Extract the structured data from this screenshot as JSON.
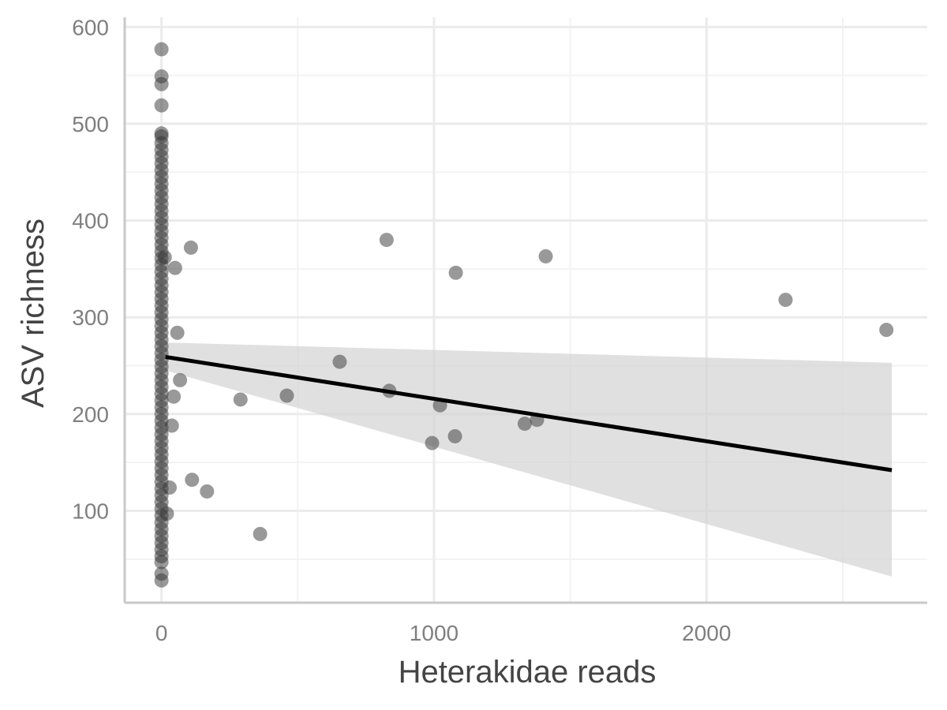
{
  "chart_data": {
    "type": "scatter",
    "title": "",
    "xlabel": "Heterakidae reads",
    "ylabel": "ASV richness",
    "xlim": [
      -135,
      2810
    ],
    "ylim": [
      5,
      610
    ],
    "x_ticks": [
      0,
      1000,
      2000
    ],
    "y_ticks": [
      100,
      200,
      300,
      400,
      500,
      600
    ],
    "grid": true,
    "colors": {
      "points": "#333333",
      "fit_line": "#000000",
      "ribbon": "#d3d3d3",
      "grid_major": "#ebebeb",
      "grid_minor": "#f3f3f3",
      "axis_line": "#c8c8c8"
    },
    "series": [
      {
        "values": [
          {
            "x": 0,
            "y": 577
          },
          {
            "x": 0,
            "y": 549
          },
          {
            "x": 0,
            "y": 541
          },
          {
            "x": 0,
            "y": 519
          },
          {
            "x": 0,
            "y": 490
          },
          {
            "x": 0,
            "y": 487
          },
          {
            "x": 0,
            "y": 480
          },
          {
            "x": 0,
            "y": 473
          },
          {
            "x": 0,
            "y": 466
          },
          {
            "x": 0,
            "y": 459
          },
          {
            "x": 0,
            "y": 452
          },
          {
            "x": 0,
            "y": 445
          },
          {
            "x": 0,
            "y": 438
          },
          {
            "x": 0,
            "y": 431
          },
          {
            "x": 0,
            "y": 424
          },
          {
            "x": 0,
            "y": 417
          },
          {
            "x": 0,
            "y": 410
          },
          {
            "x": 0,
            "y": 403
          },
          {
            "x": 0,
            "y": 396
          },
          {
            "x": 0,
            "y": 389
          },
          {
            "x": 0,
            "y": 382
          },
          {
            "x": 0,
            "y": 375
          },
          {
            "x": 0,
            "y": 368
          },
          {
            "x": 0,
            "y": 361
          },
          {
            "x": 0,
            "y": 354
          },
          {
            "x": 0,
            "y": 347
          },
          {
            "x": 0,
            "y": 340
          },
          {
            "x": 0,
            "y": 333
          },
          {
            "x": 0,
            "y": 326
          },
          {
            "x": 0,
            "y": 319
          },
          {
            "x": 0,
            "y": 312
          },
          {
            "x": 0,
            "y": 305
          },
          {
            "x": 0,
            "y": 298
          },
          {
            "x": 0,
            "y": 291
          },
          {
            "x": 0,
            "y": 284
          },
          {
            "x": 0,
            "y": 277
          },
          {
            "x": 0,
            "y": 270
          },
          {
            "x": 0,
            "y": 263
          },
          {
            "x": 0,
            "y": 256
          },
          {
            "x": 0,
            "y": 249
          },
          {
            "x": 0,
            "y": 242
          },
          {
            "x": 0,
            "y": 235
          },
          {
            "x": 0,
            "y": 228
          },
          {
            "x": 0,
            "y": 221
          },
          {
            "x": 0,
            "y": 214
          },
          {
            "x": 0,
            "y": 207
          },
          {
            "x": 0,
            "y": 200
          },
          {
            "x": 0,
            "y": 193
          },
          {
            "x": 0,
            "y": 186
          },
          {
            "x": 0,
            "y": 179
          },
          {
            "x": 0,
            "y": 172
          },
          {
            "x": 0,
            "y": 165
          },
          {
            "x": 0,
            "y": 158
          },
          {
            "x": 0,
            "y": 151
          },
          {
            "x": 0,
            "y": 144
          },
          {
            "x": 0,
            "y": 137
          },
          {
            "x": 0,
            "y": 130
          },
          {
            "x": 0,
            "y": 123
          },
          {
            "x": 0,
            "y": 116
          },
          {
            "x": 0,
            "y": 109
          },
          {
            "x": 0,
            "y": 102
          },
          {
            "x": 0,
            "y": 95
          },
          {
            "x": 0,
            "y": 88
          },
          {
            "x": 0,
            "y": 81
          },
          {
            "x": 0,
            "y": 74
          },
          {
            "x": 0,
            "y": 67
          },
          {
            "x": 0,
            "y": 60
          },
          {
            "x": 0,
            "y": 53
          },
          {
            "x": 0,
            "y": 47
          },
          {
            "x": 0,
            "y": 35
          },
          {
            "x": 0,
            "y": 28
          },
          {
            "x": 12,
            "y": 362
          },
          {
            "x": 20,
            "y": 97
          },
          {
            "x": 30,
            "y": 124
          },
          {
            "x": 38,
            "y": 188
          },
          {
            "x": 45,
            "y": 218
          },
          {
            "x": 50,
            "y": 351
          },
          {
            "x": 58,
            "y": 284
          },
          {
            "x": 68,
            "y": 235
          },
          {
            "x": 108,
            "y": 372
          },
          {
            "x": 112,
            "y": 132
          },
          {
            "x": 167,
            "y": 120
          },
          {
            "x": 290,
            "y": 215
          },
          {
            "x": 362,
            "y": 76
          },
          {
            "x": 460,
            "y": 219
          },
          {
            "x": 654,
            "y": 254
          },
          {
            "x": 826,
            "y": 380
          },
          {
            "x": 836,
            "y": 224
          },
          {
            "x": 993,
            "y": 170
          },
          {
            "x": 1022,
            "y": 209
          },
          {
            "x": 1077,
            "y": 177
          },
          {
            "x": 1080,
            "y": 346
          },
          {
            "x": 1333,
            "y": 190
          },
          {
            "x": 1378,
            "y": 194
          },
          {
            "x": 1410,
            "y": 363
          },
          {
            "x": 2290,
            "y": 318
          },
          {
            "x": 2660,
            "y": 287
          }
        ]
      }
    ],
    "fit": {
      "x": [
        15,
        2680
      ],
      "y": [
        259,
        142
      ],
      "ribbon_lower": [
        245,
        32
      ],
      "ribbon_upper": [
        274,
        253
      ]
    }
  }
}
